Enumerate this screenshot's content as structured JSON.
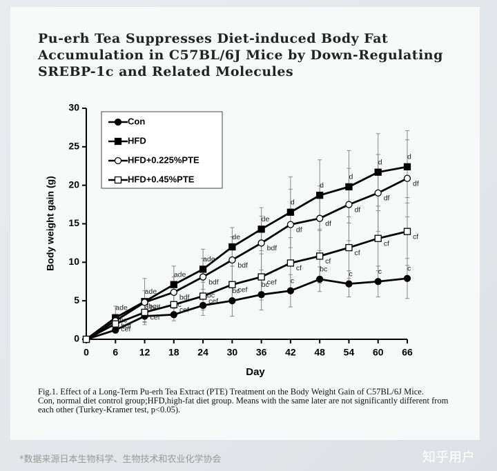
{
  "header": {
    "title": "Pu-erh Tea Suppresses Diet-induced Body Fat Accumulation in C57BL/6J Mice by Down-Regulating SREBP-1c and Related Molecules"
  },
  "chart_data": {
    "type": "line",
    "x_label": "Day",
    "y_label": "Body weight gain (g)",
    "x": [
      0,
      6,
      12,
      18,
      24,
      30,
      36,
      42,
      48,
      54,
      60,
      66
    ],
    "xlim": [
      0,
      66
    ],
    "xticks": [
      0,
      6,
      12,
      18,
      24,
      30,
      36,
      42,
      48,
      54,
      60,
      66
    ],
    "ylim": [
      0,
      30
    ],
    "yticks": [
      0,
      5,
      10,
      15,
      20,
      25,
      30
    ],
    "legend": "upper left",
    "series": [
      {
        "name": "Con",
        "color": "#000000",
        "marker": "circle",
        "filled": true,
        "values": [
          0,
          1.2,
          3.0,
          3.2,
          4.4,
          5.0,
          5.8,
          6.3,
          7.8,
          7.2,
          7.5,
          7.9
        ],
        "errors": [
          0,
          0.4,
          0.8,
          0.8,
          1.3,
          2.0,
          2.0,
          2.1,
          1.6,
          1.7,
          2.0,
          2.6
        ],
        "letters": [
          null,
          "abc",
          "abc",
          "bc",
          "abc",
          "bc",
          "bc",
          "c",
          "bc",
          "c",
          "c",
          "c"
        ]
      },
      {
        "name": "HFD",
        "color": "#000000",
        "marker": "square",
        "filled": true,
        "values": [
          0,
          2.8,
          4.9,
          7.1,
          9.1,
          12.0,
          14.3,
          16.5,
          18.7,
          19.8,
          21.7,
          22.4
        ],
        "errors": [
          0,
          1.5,
          3.0,
          2.4,
          2.6,
          2.5,
          2.8,
          4.6,
          4.6,
          4.7,
          5.0,
          4.7
        ],
        "letters": [
          null,
          "ade",
          "ade",
          "ade",
          "ade",
          "de",
          "de",
          "d",
          "d",
          "d",
          "d",
          "d"
        ]
      },
      {
        "name": "HFD+0.225%PTE",
        "color": "#000000",
        "marker": "circle",
        "filled": false,
        "values": [
          0,
          2.4,
          4.8,
          6.1,
          8.1,
          10.3,
          12.5,
          14.9,
          15.7,
          17.5,
          19.0,
          20.9
        ],
        "errors": [
          0,
          0.8,
          1.5,
          2.0,
          2.4,
          3.0,
          3.5,
          4.6,
          4.2,
          4.7,
          5.0,
          5.0
        ],
        "letters": [
          null,
          "bdf",
          "bdf",
          "bdf",
          "bdf",
          "bdf",
          "bdf",
          "df",
          "df",
          "df",
          "df",
          "df"
        ]
      },
      {
        "name": "HFD+0.45%PTE",
        "color": "#000000",
        "marker": "square",
        "filled": false,
        "values": [
          0,
          2.0,
          3.5,
          4.5,
          5.6,
          7.1,
          8.1,
          9.9,
          10.8,
          11.9,
          13.1,
          14.0
        ],
        "errors": [
          0,
          0.7,
          1.2,
          1.5,
          1.8,
          2.4,
          3.0,
          3.3,
          3.5,
          4.0,
          4.2,
          4.4
        ],
        "letters": [
          null,
          "cef",
          "cef",
          "cef",
          "cef",
          "cef",
          "cef",
          "cf",
          "cf",
          "cf",
          "cf",
          "cf"
        ]
      }
    ]
  },
  "caption": {
    "line1": "Fig.1. Effect of a Long-Term Pu-erh Tea Extract (PTE) Treatment on the Body Weight Gain of C57BL/6J Mice.",
    "line2": "Con, normal diet control group;HFD,high-fat diet group. Means with the same later are not significantly different from each other (Turkey-Kramer test, p<0.05)."
  },
  "footer": {
    "source": "*数据来源日本生物科学、生物技术和农业化学协会",
    "watermark": "知乎用户"
  }
}
